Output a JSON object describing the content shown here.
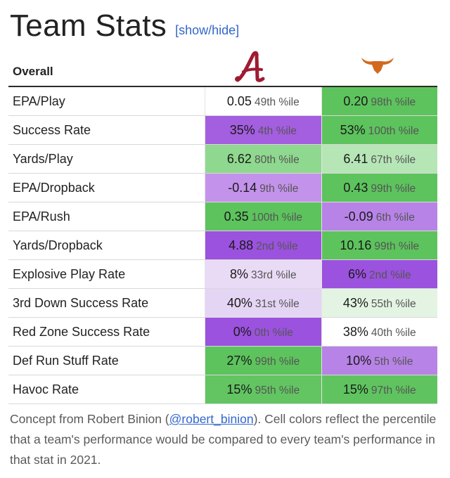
{
  "title": "Team Stats",
  "toggle_label": "[show/hide]",
  "table": {
    "header_label": "Overall",
    "rows": [
      {
        "stat": "EPA/Play",
        "a": {
          "val": "0.05",
          "pct": "49th %ile",
          "color": "#ffffff"
        },
        "b": {
          "val": "0.20",
          "pct": "98th %ile",
          "color": "#5dc35d"
        }
      },
      {
        "stat": "Success Rate",
        "a": {
          "val": "35%",
          "pct": "4th %ile",
          "color": "#a45ee0"
        },
        "b": {
          "val": "53%",
          "pct": "100th %ile",
          "color": "#5dc35d"
        }
      },
      {
        "stat": "Yards/Play",
        "a": {
          "val": "6.62",
          "pct": "80th %ile",
          "color": "#8fd88f"
        },
        "b": {
          "val": "6.41",
          "pct": "67th %ile",
          "color": "#b6e6b6"
        }
      },
      {
        "stat": "EPA/Dropback",
        "a": {
          "val": "-0.14",
          "pct": "9th %ile",
          "color": "#c392ea"
        },
        "b": {
          "val": "0.43",
          "pct": "99th %ile",
          "color": "#5dc35d"
        }
      },
      {
        "stat": "EPA/Rush",
        "a": {
          "val": "0.35",
          "pct": "100th %ile",
          "color": "#5dc35d"
        },
        "b": {
          "val": "-0.09",
          "pct": "6th %ile",
          "color": "#b783e6"
        }
      },
      {
        "stat": "Yards/Dropback",
        "a": {
          "val": "4.88",
          "pct": "2nd %ile",
          "color": "#9b52de"
        },
        "b": {
          "val": "10.16",
          "pct": "99th %ile",
          "color": "#5dc35d"
        }
      },
      {
        "stat": "Explosive Play Rate",
        "a": {
          "val": "8%",
          "pct": "33rd %ile",
          "color": "#e9dbf6"
        },
        "b": {
          "val": "6%",
          "pct": "2nd %ile",
          "color": "#9b52de"
        }
      },
      {
        "stat": "3rd Down Success Rate",
        "a": {
          "val": "40%",
          "pct": "31st %ile",
          "color": "#e5d5f5"
        },
        "b": {
          "val": "43%",
          "pct": "55th %ile",
          "color": "#e3f4e3"
        }
      },
      {
        "stat": "Red Zone Success Rate",
        "a": {
          "val": "0%",
          "pct": "0th %ile",
          "color": "#9b52de"
        },
        "b": {
          "val": "38%",
          "pct": "40th %ile",
          "color": "#ffffff"
        }
      },
      {
        "stat": "Def Run Stuff Rate",
        "a": {
          "val": "27%",
          "pct": "99th %ile",
          "color": "#5dc35d"
        },
        "b": {
          "val": "10%",
          "pct": "5th %ile",
          "color": "#b783e6"
        }
      },
      {
        "stat": "Havoc Rate",
        "a": {
          "val": "15%",
          "pct": "95th %ile",
          "color": "#62c562"
        },
        "b": {
          "val": "15%",
          "pct": "97th %ile",
          "color": "#5fc45f"
        }
      }
    ]
  },
  "caption": {
    "before": "Concept from Robert Binion (",
    "link": "@robert_binion",
    "after": "). Cell colors reflect the percentile that a team's performance would be compared to every team's performance in that stat in 2021."
  },
  "colors": {
    "alabama_crimson": "#9e1b32",
    "texas_orange": "#d2691e",
    "link_blue": "#3366cc"
  },
  "icons": {
    "team_a": "alabama-script-a-logo",
    "team_b": "texas-longhorn-logo"
  }
}
